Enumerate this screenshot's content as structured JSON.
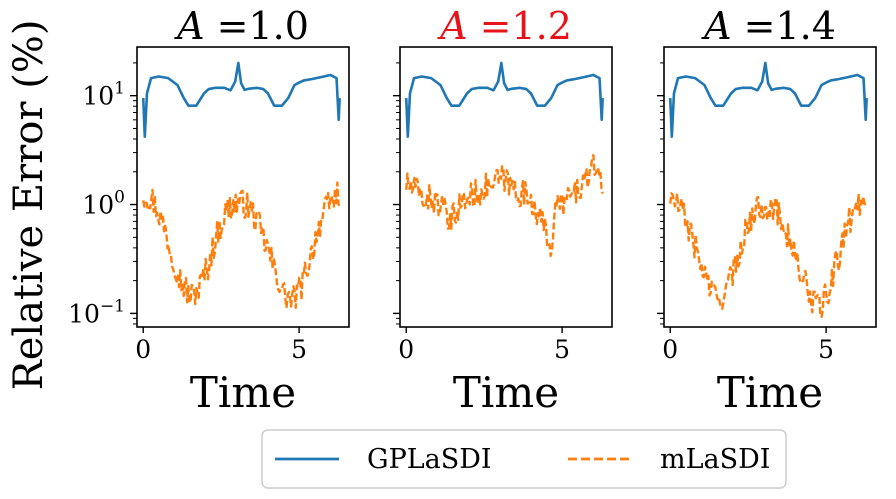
{
  "chart_data": {
    "type": "line",
    "ylabel": "Relative Error (%)",
    "xlabel": "Time",
    "yscale": "log",
    "ylim": [
      0.075,
      28
    ],
    "xlim": [
      -0.2,
      6.6
    ],
    "xticks": [
      0,
      5
    ],
    "xtick_labels": [
      "0",
      "5"
    ],
    "yticks": [
      0.1,
      1,
      10
    ],
    "ytick_base": "10",
    "ytick_exponents": [
      "−1",
      "0",
      "1"
    ],
    "legend": {
      "placement": "bottom-center",
      "entries": [
        "GPLaSDI",
        "mLaSDI"
      ]
    },
    "colors": {
      "gplasdi": "#1f77b4",
      "mlasdi": "#ff7f0e",
      "highlight_title": "#e8131a",
      "title": "#000000"
    },
    "panels": [
      {
        "title_var": "A",
        "title_value": "=1.0",
        "highlight": false,
        "series": [
          {
            "name": "GPLaSDI",
            "style": "solid",
            "x": [
              0,
              0.05,
              0.12,
              0.25,
              0.5,
              0.8,
              1.1,
              1.3,
              1.45,
              1.7,
              1.95,
              2.1,
              2.3,
              2.6,
              2.8,
              2.95,
              3.05,
              3.14,
              3.25,
              3.4,
              3.65,
              3.85,
              4.0,
              4.2,
              4.45,
              4.65,
              4.85,
              5.0,
              5.15,
              5.4,
              5.7,
              6.0,
              6.2,
              6.27,
              6.3
            ],
            "values": [
              9.5,
              4.2,
              10.5,
              14.5,
              15,
              14.5,
              12.5,
              9.5,
              8.1,
              8.1,
              10.5,
              11.5,
              11.8,
              11.8,
              11.2,
              13.5,
              20,
              13,
              11.3,
              11.6,
              11.8,
              11.5,
              10.5,
              8.1,
              8.1,
              9.5,
              12.5,
              13.2,
              13.8,
              14.2,
              14.8,
              15.5,
              14.5,
              6,
              9.5
            ]
          },
          {
            "name": "mLaSDI",
            "style": "dashed",
            "x": [
              0,
              0.3,
              0.6,
              0.9,
              1.2,
              1.5,
              1.8,
              2.1,
              2.4,
              2.7,
              3.0,
              3.3,
              3.6,
              3.9,
              4.2,
              4.5,
              4.8,
              5.1,
              5.4,
              5.7,
              6.0,
              6.3
            ],
            "values": [
              1.25,
              1.1,
              0.7,
              0.35,
              0.2,
              0.14,
              0.17,
              0.28,
              0.55,
              0.9,
              1.05,
              1.0,
              0.75,
              0.45,
              0.25,
              0.15,
              0.13,
              0.18,
              0.35,
              0.7,
              1.05,
              1.3
            ]
          }
        ]
      },
      {
        "title_var": "A",
        "title_value": "=1.2",
        "highlight": true,
        "series": [
          {
            "name": "GPLaSDI",
            "style": "solid",
            "x": [
              0,
              0.05,
              0.12,
              0.25,
              0.5,
              0.8,
              1.1,
              1.3,
              1.45,
              1.7,
              1.95,
              2.1,
              2.3,
              2.6,
              2.8,
              2.95,
              3.05,
              3.14,
              3.25,
              3.4,
              3.65,
              3.85,
              4.0,
              4.2,
              4.45,
              4.65,
              4.85,
              5.0,
              5.15,
              5.4,
              5.7,
              6.0,
              6.2,
              6.27,
              6.3
            ],
            "values": [
              9.5,
              4.2,
              10.5,
              14.5,
              15,
              14.5,
              12.5,
              9.5,
              8.1,
              8.1,
              10.5,
              11.5,
              11.8,
              11.8,
              11.2,
              13.5,
              20,
              13,
              11.3,
              11.6,
              11.8,
              11.5,
              10.5,
              8.1,
              8.1,
              9.5,
              12.5,
              13.2,
              13.8,
              14.2,
              14.8,
              15.5,
              14.5,
              6,
              9.5
            ]
          },
          {
            "name": "mLaSDI",
            "style": "dashed",
            "x": [
              0,
              0.3,
              0.6,
              0.9,
              1.2,
              1.4,
              1.6,
              1.9,
              2.2,
              2.5,
              2.8,
              3.1,
              3.4,
              3.7,
              4.0,
              4.3,
              4.5,
              4.65,
              4.8,
              5.0,
              5.3,
              5.6,
              5.9,
              6.1,
              6.3
            ],
            "values": [
              1.55,
              1.35,
              1.15,
              1.1,
              0.9,
              0.6,
              0.9,
              1.1,
              1.25,
              1.4,
              1.55,
              1.75,
              1.45,
              1.25,
              1.15,
              0.7,
              0.55,
              0.38,
              0.9,
              1.05,
              1.2,
              1.45,
              1.9,
              2.3,
              1.6
            ]
          }
        ]
      },
      {
        "title_var": "A",
        "title_value": "=1.4",
        "highlight": false,
        "series": [
          {
            "name": "GPLaSDI",
            "style": "solid",
            "x": [
              0,
              0.05,
              0.12,
              0.25,
              0.5,
              0.8,
              1.1,
              1.3,
              1.45,
              1.7,
              1.95,
              2.1,
              2.3,
              2.6,
              2.8,
              2.95,
              3.05,
              3.14,
              3.25,
              3.4,
              3.65,
              3.85,
              4.0,
              4.2,
              4.45,
              4.65,
              4.85,
              5.0,
              5.15,
              5.4,
              5.7,
              6.0,
              6.2,
              6.27,
              6.3
            ],
            "values": [
              9.5,
              4.2,
              10.5,
              14.5,
              15,
              14.5,
              12.5,
              9.5,
              8.1,
              8.1,
              10.5,
              11.5,
              11.8,
              11.8,
              11.2,
              13.5,
              20,
              13,
              11.3,
              11.6,
              11.8,
              11.5,
              10.5,
              8.1,
              8.1,
              9.5,
              12.5,
              13.2,
              13.8,
              14.2,
              14.8,
              15.5,
              14.5,
              6,
              9.5
            ]
          },
          {
            "name": "mLaSDI",
            "style": "dashed",
            "x": [
              0,
              0.3,
              0.6,
              0.9,
              1.2,
              1.5,
              1.8,
              2.1,
              2.4,
              2.7,
              3.0,
              3.3,
              3.6,
              3.9,
              4.2,
              4.5,
              4.8,
              5.1,
              5.4,
              5.7,
              6.0,
              6.3
            ],
            "values": [
              1.15,
              0.95,
              0.6,
              0.32,
              0.19,
              0.13,
              0.16,
              0.27,
              0.55,
              0.85,
              1.0,
              0.95,
              0.7,
              0.4,
              0.22,
              0.14,
              0.11,
              0.16,
              0.32,
              0.65,
              1.0,
              1.2
            ]
          }
        ]
      }
    ]
  }
}
